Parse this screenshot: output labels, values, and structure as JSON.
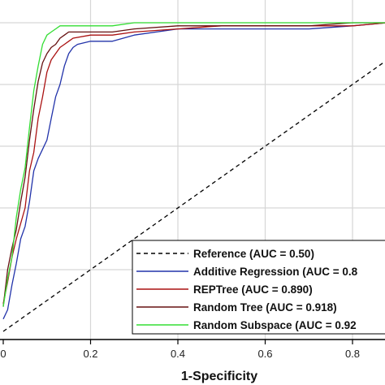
{
  "chart_data": {
    "type": "line",
    "title": "",
    "xlabel": "1-Specificity",
    "ylabel": "",
    "xlim": [
      0.0,
      0.88
    ],
    "ylim": [
      -0.015,
      1.05
    ],
    "xticks": [
      0,
      0.2,
      0.4,
      0.6,
      0.8
    ],
    "xtick_labels": [
      "0",
      "0.2",
      "0.4",
      "0.6",
      "0.8"
    ],
    "ygrid": [
      0.2,
      0.4,
      0.6,
      0.8,
      1.0
    ],
    "grid": true,
    "legend_position": "bottom-right",
    "series": [
      {
        "name": "Reference (AUC = 0.50)",
        "color": "#000000",
        "dash": "dashed",
        "x": [
          0.0,
          0.88
        ],
        "y": [
          0.0,
          0.88
        ]
      },
      {
        "name": "Additive Regression (AUC = 0.8",
        "color": "#2233aa",
        "dash": "solid",
        "x": [
          0.0,
          0.01,
          0.02,
          0.03,
          0.04,
          0.05,
          0.06,
          0.07,
          0.08,
          0.09,
          0.1,
          0.11,
          0.12,
          0.13,
          0.14,
          0.15,
          0.16,
          0.17,
          0.2,
          0.25,
          0.3,
          0.4,
          0.5,
          0.6,
          0.7,
          0.8,
          0.88
        ],
        "y": [
          0.04,
          0.07,
          0.15,
          0.22,
          0.3,
          0.34,
          0.42,
          0.52,
          0.56,
          0.59,
          0.62,
          0.69,
          0.76,
          0.8,
          0.86,
          0.9,
          0.92,
          0.93,
          0.94,
          0.94,
          0.96,
          0.98,
          0.98,
          0.98,
          0.98,
          0.99,
          1.0
        ]
      },
      {
        "name": "REPTree (AUC = 0.890)",
        "color": "#aa1111",
        "dash": "solid",
        "x": [
          0.0,
          0.01,
          0.02,
          0.03,
          0.04,
          0.05,
          0.06,
          0.07,
          0.08,
          0.09,
          0.1,
          0.11,
          0.12,
          0.13,
          0.14,
          0.15,
          0.16,
          0.2,
          0.25,
          0.3,
          0.4,
          0.5,
          0.6,
          0.7,
          0.8,
          0.88
        ],
        "y": [
          0.09,
          0.16,
          0.24,
          0.3,
          0.35,
          0.4,
          0.52,
          0.58,
          0.69,
          0.76,
          0.84,
          0.88,
          0.9,
          0.92,
          0.93,
          0.94,
          0.95,
          0.96,
          0.96,
          0.97,
          0.98,
          0.99,
          0.99,
          0.99,
          0.99,
          1.0
        ]
      },
      {
        "name": "Random Tree (AUC = 0.918)",
        "color": "#661111",
        "dash": "solid",
        "x": [
          0.0,
          0.01,
          0.02,
          0.03,
          0.04,
          0.05,
          0.06,
          0.07,
          0.08,
          0.09,
          0.1,
          0.11,
          0.12,
          0.13,
          0.14,
          0.15,
          0.2,
          0.25,
          0.3,
          0.4,
          0.5,
          0.6,
          0.7,
          0.8,
          0.88
        ],
        "y": [
          0.08,
          0.2,
          0.27,
          0.33,
          0.42,
          0.5,
          0.62,
          0.72,
          0.81,
          0.87,
          0.9,
          0.92,
          0.93,
          0.95,
          0.96,
          0.97,
          0.97,
          0.97,
          0.98,
          0.99,
          0.99,
          0.99,
          0.99,
          1.0,
          1.0
        ]
      },
      {
        "name": "Random Subspace (AUC = 0.92",
        "color": "#33dd33",
        "dash": "solid",
        "x": [
          0.0,
          0.01,
          0.02,
          0.03,
          0.04,
          0.05,
          0.06,
          0.07,
          0.08,
          0.09,
          0.1,
          0.11,
          0.12,
          0.13,
          0.14,
          0.16,
          0.2,
          0.25,
          0.3,
          0.4,
          0.5,
          0.6,
          0.7,
          0.8,
          0.88
        ],
        "y": [
          0.08,
          0.17,
          0.24,
          0.37,
          0.46,
          0.53,
          0.66,
          0.78,
          0.86,
          0.93,
          0.96,
          0.97,
          0.98,
          0.99,
          0.99,
          0.99,
          0.99,
          0.99,
          1.0,
          1.0,
          1.0,
          1.0,
          1.0,
          1.0,
          1.0
        ]
      }
    ]
  }
}
